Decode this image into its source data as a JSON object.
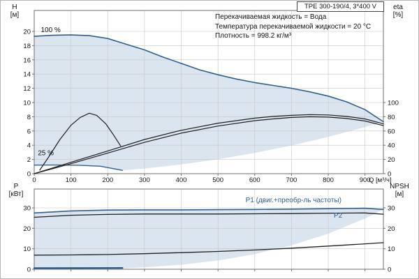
{
  "colors": {
    "blue": "#2f5f8f",
    "dark": "#1f1f1f",
    "fill": "#dbe5f0",
    "grid": "#c6c6c6",
    "frame": "#6e6e6e",
    "text": "#111111"
  },
  "axis_headers": {
    "top_left": [
      "H",
      "[м]"
    ],
    "top_right": [
      "eta",
      "[%]"
    ],
    "bottom_left": [
      "P",
      "[кВт]"
    ],
    "bottom_right": [
      "NPSH",
      "[м]"
    ]
  },
  "chart_data": [
    {
      "id": "hq",
      "type": "line",
      "title": "TPE 300-190/4, 3*400 V",
      "annotations": [
        "Перекачиваемая жидкость = Вода",
        "Температура перекачиваемой жидкости = 20 °C",
        "Плотность = 998.2 кг/м³"
      ],
      "xlabel": "Q [м³/ч]",
      "xlim": [
        0,
        950
      ],
      "ylim": [
        0,
        22.94
      ],
      "xticks": [
        0,
        100,
        200,
        300,
        400,
        500,
        600,
        700,
        800,
        900
      ],
      "x_tick_labels": true,
      "yticks_left": [
        0,
        2,
        4,
        6,
        8,
        10,
        12,
        14,
        16,
        18,
        20
      ],
      "yticks_right": {
        "values": [
          0,
          20,
          40,
          60,
          80,
          100
        ],
        "scale": 0.1
      },
      "series": [
        {
          "name": "speed-envelope-area",
          "kind": "area",
          "color": "fill",
          "points": [
            [
              0,
              19.3
            ],
            [
              50,
              19.45
            ],
            [
              100,
              19.5
            ],
            [
              150,
              19.4
            ],
            [
              200,
              19.0
            ],
            [
              250,
              18.2
            ],
            [
              300,
              17.4
            ],
            [
              350,
              16.4
            ],
            [
              400,
              15.5
            ],
            [
              450,
              14.6
            ],
            [
              500,
              13.9
            ],
            [
              550,
              13.3
            ],
            [
              600,
              12.8
            ],
            [
              650,
              12.4
            ],
            [
              700,
              12.0
            ],
            [
              750,
              11.5
            ],
            [
              800,
              10.9
            ],
            [
              850,
              10.1
            ],
            [
              900,
              9.0
            ],
            [
              950,
              7.3
            ],
            [
              900,
              6.55
            ],
            [
              800,
              5.18
            ],
            [
              700,
              3.96
            ],
            [
              600,
              2.91
            ],
            [
              500,
              2.02
            ],
            [
              400,
              1.29
            ],
            [
              300,
              0.73
            ],
            [
              240,
              0.47
            ],
            [
              180,
              1.05
            ],
            [
              120,
              1.19
            ],
            [
              60,
              1.22
            ],
            [
              0,
              1.21
            ]
          ]
        },
        {
          "name": "hq-curve-100pct",
          "kind": "line",
          "color": "blue",
          "width": 1.6,
          "points": [
            [
              0,
              19.3
            ],
            [
              50,
              19.45
            ],
            [
              100,
              19.5
            ],
            [
              150,
              19.4
            ],
            [
              200,
              19.0
            ],
            [
              250,
              18.2
            ],
            [
              300,
              17.4
            ],
            [
              350,
              16.4
            ],
            [
              400,
              15.5
            ],
            [
              450,
              14.6
            ],
            [
              500,
              13.9
            ],
            [
              550,
              13.3
            ],
            [
              600,
              12.8
            ],
            [
              650,
              12.4
            ],
            [
              700,
              12.0
            ],
            [
              750,
              11.5
            ],
            [
              800,
              10.9
            ],
            [
              850,
              10.1
            ],
            [
              900,
              9.0
            ],
            [
              950,
              7.3
            ]
          ]
        },
        {
          "name": "hq-curve-25pct",
          "kind": "line",
          "color": "blue",
          "width": 1.4,
          "points": [
            [
              0,
              1.21
            ],
            [
              60,
              1.22
            ],
            [
              120,
              1.19
            ],
            [
              180,
              1.05
            ],
            [
              240,
              0.47
            ]
          ]
        },
        {
          "name": "eta-curve-100pct-total",
          "kind": "line",
          "color": "dark",
          "width": 1.2,
          "points": [
            [
              0,
              0
            ],
            [
              100,
              1.6
            ],
            [
              200,
              3.2
            ],
            [
              300,
              4.8
            ],
            [
              400,
              6.1
            ],
            [
              500,
              7.1
            ],
            [
              600,
              7.8
            ],
            [
              650,
              8.05
            ],
            [
              700,
              8.2
            ],
            [
              750,
              8.3
            ],
            [
              800,
              8.25
            ],
            [
              850,
              8.05
            ],
            [
              900,
              7.7
            ],
            [
              950,
              7.0
            ]
          ]
        },
        {
          "name": "eta-curve-100pct-pump",
          "kind": "line",
          "color": "dark",
          "width": 1.2,
          "points": [
            [
              0,
              0
            ],
            [
              100,
              1.4
            ],
            [
              200,
              2.9
            ],
            [
              300,
              4.4
            ],
            [
              400,
              5.7
            ],
            [
              500,
              6.7
            ],
            [
              600,
              7.45
            ],
            [
              650,
              7.7
            ],
            [
              700,
              7.9
            ],
            [
              750,
              8.0
            ],
            [
              800,
              7.95
            ],
            [
              850,
              7.75
            ],
            [
              900,
              7.4
            ],
            [
              950,
              6.75
            ]
          ]
        },
        {
          "name": "eta-curve-25pct",
          "kind": "line",
          "color": "dark",
          "width": 1.2,
          "points": [
            [
              15,
              0.5
            ],
            [
              40,
              2.4
            ],
            [
              70,
              4.8
            ],
            [
              100,
              6.8
            ],
            [
              125,
              7.9
            ],
            [
              150,
              8.5
            ],
            [
              170,
              8.2
            ],
            [
              195,
              7.0
            ],
            [
              215,
              5.5
            ],
            [
              235,
              3.9
            ]
          ]
        }
      ],
      "labels": [
        {
          "text": "100 %",
          "x": 18,
          "y": 19.9,
          "color": "text",
          "anchor": "start"
        },
        {
          "text": "25 %",
          "x": 10,
          "y": 2.6,
          "color": "text",
          "anchor": "start"
        }
      ]
    },
    {
      "id": "power",
      "type": "line",
      "xlabel": "",
      "xlim": [
        0,
        950
      ],
      "ylim": [
        0,
        39.2
      ],
      "xticks": [
        0,
        100,
        200,
        300,
        400,
        500,
        600,
        700,
        800,
        900
      ],
      "x_tick_labels": false,
      "yticks_left": [
        0,
        10,
        20,
        30
      ],
      "yticks_right": {
        "values": [
          0,
          10,
          20,
          30
        ],
        "scale": 1
      },
      "series": [
        {
          "name": "power-envelope-area",
          "kind": "area",
          "color": "fill",
          "points": [
            [
              0,
              27.5
            ],
            [
              100,
              28.5
            ],
            [
              200,
              28.9
            ],
            [
              300,
              29.0
            ],
            [
              400,
              29.0
            ],
            [
              500,
              29.1
            ],
            [
              600,
              29.2
            ],
            [
              700,
              29.4
            ],
            [
              800,
              29.6
            ],
            [
              900,
              29.8
            ],
            [
              950,
              29.2
            ],
            [
              900,
              24.8
            ],
            [
              800,
              17.4
            ],
            [
              700,
              11.7
            ],
            [
              600,
              7.35
            ],
            [
              500,
              4.25
            ],
            [
              400,
              2.18
            ],
            [
              300,
              0.92
            ],
            [
              240,
              0.47
            ],
            [
              120,
              0.55
            ],
            [
              0,
              0.55
            ]
          ]
        },
        {
          "name": "p1-curve",
          "kind": "line",
          "color": "blue",
          "width": 1.6,
          "points": [
            [
              0,
              27.5
            ],
            [
              100,
              28.5
            ],
            [
              200,
              28.9
            ],
            [
              300,
              29.0
            ],
            [
              400,
              29.0
            ],
            [
              500,
              29.1
            ],
            [
              600,
              29.2
            ],
            [
              700,
              29.4
            ],
            [
              800,
              29.6
            ],
            [
              900,
              29.8
            ],
            [
              950,
              29.2
            ]
          ]
        },
        {
          "name": "p2-curve",
          "kind": "line",
          "color": "dark",
          "width": 1.3,
          "points": [
            [
              0,
              25.4
            ],
            [
              100,
              26.4
            ],
            [
              200,
              26.8
            ],
            [
              300,
              27.0
            ],
            [
              400,
              27.0
            ],
            [
              500,
              27.0
            ],
            [
              600,
              27.1
            ],
            [
              700,
              27.2
            ],
            [
              800,
              27.4
            ],
            [
              900,
              27.5
            ],
            [
              950,
              26.9
            ]
          ]
        },
        {
          "name": "power-curve-25pct",
          "kind": "line",
          "color": "blue",
          "width": 2.4,
          "points": [
            [
              0,
              0.55
            ],
            [
              240,
              0.6
            ]
          ]
        },
        {
          "name": "npsh-curve",
          "kind": "line",
          "color": "dark",
          "width": 1.3,
          "points": [
            [
              0,
              6.9
            ],
            [
              100,
              7.0
            ],
            [
              200,
              7.2
            ],
            [
              300,
              7.6
            ],
            [
              400,
              8.1
            ],
            [
              500,
              8.7
            ],
            [
              600,
              9.4
            ],
            [
              700,
              10.3
            ],
            [
              800,
              11.3
            ],
            [
              900,
              12.4
            ],
            [
              950,
              13.0
            ]
          ]
        }
      ],
      "labels": [
        {
          "text": "P1 (двиг.+преобр-ль частоты)",
          "x": 575,
          "y": 32.8,
          "color": "blue",
          "anchor": "start"
        },
        {
          "text": "P2",
          "x": 815,
          "y": 25.2,
          "color": "blue",
          "anchor": "start"
        }
      ]
    }
  ]
}
